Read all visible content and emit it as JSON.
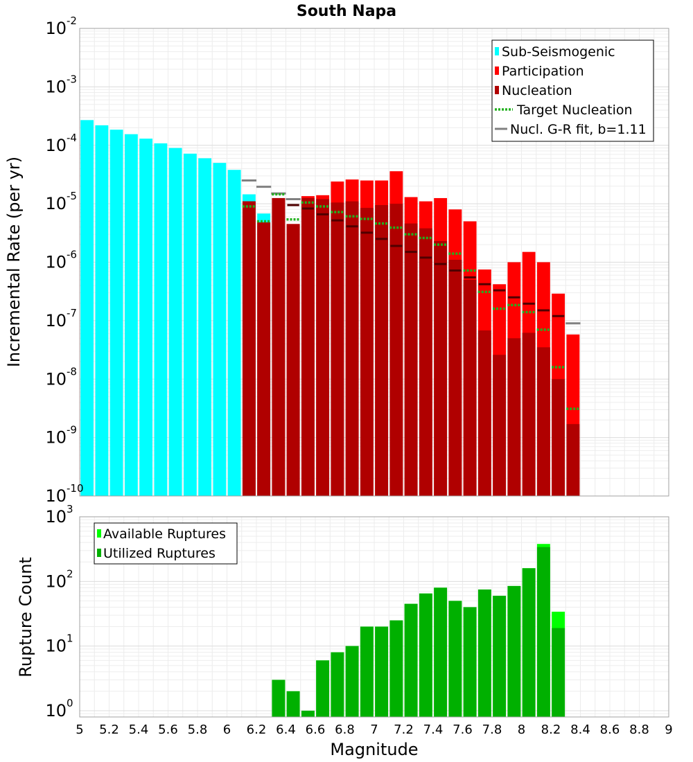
{
  "chart_data": [
    {
      "type": "bar",
      "title": "South Napa",
      "ylabel": "Incremental Rate (per yr)",
      "yscale": "log",
      "ylim": [
        1e-10,
        0.01
      ],
      "xlim": [
        5,
        9
      ],
      "grid": true,
      "legend_position": "top-right",
      "colors": {
        "sub_seismogenic": "#00ffff",
        "participation": "#ff0000",
        "nucleation": "#b00000",
        "target_nucleation": "#22b11f",
        "gr_fit": "#808080",
        "solution_nucleation_dash": "#500000"
      },
      "legend": [
        {
          "key": "sub_seismogenic",
          "label": "Sub-Seismogenic",
          "style": "box"
        },
        {
          "key": "participation",
          "label": "Participation",
          "style": "box"
        },
        {
          "key": "nucleation",
          "label": "Nucleation",
          "style": "box"
        },
        {
          "key": "target_nucleation",
          "label": "Target Nucleation",
          "style": "dotted"
        },
        {
          "key": "gr_fit",
          "label": "Nucl. G-R fit, b=1.11",
          "style": "line"
        }
      ],
      "sub_seismogenic": {
        "x": [
          5.05,
          5.15,
          5.25,
          5.35,
          5.45,
          5.55,
          5.65,
          5.75,
          5.85,
          5.95,
          6.05,
          6.15,
          6.25
        ],
        "values": [
          0.00027,
          0.00022,
          0.000185,
          0.000155,
          0.00013,
          0.000108,
          9e-05,
          7.2e-05,
          6e-05,
          5e-05,
          3.8e-05,
          1.45e-05,
          6.8e-06
        ]
      },
      "participation": {
        "x": [
          6.15,
          6.25,
          6.35,
          6.45,
          6.55,
          6.65,
          6.75,
          6.85,
          6.95,
          7.05,
          7.15,
          7.25,
          7.35,
          7.45,
          7.55,
          7.65,
          7.75,
          7.85,
          7.95,
          8.05,
          8.15,
          8.25,
          8.35
        ],
        "values": [
          1.1e-05,
          4.8e-06,
          1.25e-05,
          4.5e-06,
          1.35e-05,
          1.4e-05,
          2.4e-05,
          2.6e-05,
          2.5e-05,
          2.5e-05,
          3.6e-05,
          1.3e-05,
          1.1e-05,
          1.25e-05,
          8e-06,
          5e-06,
          7.5e-07,
          4.2e-07,
          1e-06,
          1.5e-06,
          1e-06,
          2.9e-07,
          5.8e-08
        ]
      },
      "nucleation": {
        "x": [
          6.15,
          6.25,
          6.35,
          6.45,
          6.55,
          6.65,
          6.75,
          6.85,
          6.95,
          7.05,
          7.15,
          7.25,
          7.35,
          7.45,
          7.55,
          7.65,
          7.75,
          7.85,
          7.95,
          8.05,
          8.15,
          8.25,
          8.35
        ],
        "values": [
          1.1e-05,
          4.8e-06,
          1.25e-05,
          4.5e-06,
          1.25e-05,
          1.2e-05,
          1.05e-05,
          1.1e-05,
          8.5e-06,
          9.5e-06,
          1e-05,
          4.6e-06,
          3.8e-06,
          2.3e-06,
          1.1e-06,
          5e-07,
          6.8e-08,
          2.6e-08,
          5e-08,
          6.2e-08,
          3.5e-08,
          1e-08,
          1.7e-09
        ]
      },
      "solution_nucleation_marks": {
        "x": [
          6.45,
          6.55,
          6.65,
          6.75,
          6.85,
          6.95,
          7.05,
          7.15,
          7.25,
          7.35,
          7.45,
          7.55,
          7.65,
          7.75,
          7.85,
          7.95,
          8.05,
          8.15,
          8.25
        ],
        "values": [
          9.5e-06,
          8.3e-06,
          6.6e-06,
          5.2e-06,
          4.1e-06,
          3.2e-06,
          2.5e-06,
          1.9e-06,
          1.5e-06,
          1.2e-06,
          9.3e-07,
          7.2e-07,
          5.5e-07,
          4.2e-07,
          3.3e-07,
          2.5e-07,
          1.95e-07,
          1.5e-07,
          1.2e-07
        ]
      },
      "target_nucleation": {
        "x": [
          6.15,
          6.25,
          6.35,
          6.45,
          6.55,
          6.65,
          6.75,
          6.85,
          6.95,
          7.05,
          7.15,
          7.25,
          7.35,
          7.45,
          7.55,
          7.65,
          7.75,
          7.85,
          7.95,
          8.05,
          8.15,
          8.25,
          8.35
        ],
        "values": [
          9e-06,
          5e-06,
          1.45e-05,
          5.4e-06,
          1.05e-05,
          9e-06,
          7.2e-06,
          6.1e-06,
          5.5e-06,
          4.6e-06,
          3.9e-06,
          3e-06,
          2.6e-06,
          2e-06,
          1.4e-06,
          7.2e-07,
          3.1e-07,
          1.6e-07,
          1.85e-07,
          1.4e-07,
          7e-08,
          1.6e-08,
          3.1e-09
        ]
      },
      "gr_fit": {
        "x": [
          6.15,
          6.25,
          6.35,
          6.45
        ],
        "values": [
          2.5e-05,
          1.95e-05,
          1.5e-05,
          1.2e-05
        ],
        "tail": {
          "x": 8.35,
          "value": 9e-08
        }
      }
    },
    {
      "type": "bar",
      "title": "",
      "xlabel": "Magnitude",
      "ylabel": "Rupture Count",
      "yscale": "log",
      "ylim": [
        0.8,
        1000
      ],
      "xlim": [
        5,
        9
      ],
      "grid": true,
      "legend_position": "top-left",
      "colors": {
        "available": "#00ff00",
        "utilized": "#00b000"
      },
      "legend": [
        {
          "key": "available",
          "label": "Available Ruptures"
        },
        {
          "key": "utilized",
          "label": "Utilized Ruptures"
        }
      ],
      "x_ticks": [
        "5",
        "5.2",
        "5.4",
        "5.6",
        "5.8",
        "6",
        "6.2",
        "6.4",
        "6.6",
        "6.8",
        "7",
        "7.2",
        "7.4",
        "7.6",
        "7.8",
        "8",
        "8.2",
        "8.4",
        "8.6",
        "8.8",
        "9"
      ],
      "y_ticks": [
        {
          "base": "10",
          "exp": "0",
          "value": 1
        },
        {
          "base": "10",
          "exp": "1",
          "value": 10
        },
        {
          "base": "10",
          "exp": "2",
          "value": 100
        },
        {
          "base": "10",
          "exp": "3",
          "value": 1000
        }
      ],
      "available": {
        "x": [
          6.35,
          6.45,
          6.55,
          6.65,
          6.75,
          6.85,
          6.95,
          7.05,
          7.15,
          7.25,
          7.35,
          7.45,
          7.55,
          7.65,
          7.75,
          7.85,
          7.95,
          8.05,
          8.15,
          8.25
        ],
        "values": [
          3,
          2,
          1,
          6,
          8,
          10,
          20,
          20,
          25,
          45,
          65,
          80,
          50,
          40,
          75,
          60,
          85,
          160,
          380,
          34
        ]
      },
      "utilized": {
        "x": [
          6.35,
          6.45,
          6.55,
          6.65,
          6.75,
          6.85,
          6.95,
          7.05,
          7.15,
          7.25,
          7.35,
          7.45,
          7.55,
          7.65,
          7.75,
          7.85,
          7.95,
          8.05,
          8.15,
          8.25
        ],
        "values": [
          3,
          2,
          1,
          6,
          8,
          10,
          20,
          20,
          25,
          45,
          65,
          80,
          50,
          40,
          75,
          60,
          85,
          160,
          340,
          19
        ]
      }
    }
  ],
  "top_y_ticks": [
    {
      "base": "10",
      "exp": "-10",
      "value": 1e-10
    },
    {
      "base": "10",
      "exp": "-9",
      "value": 1e-09
    },
    {
      "base": "10",
      "exp": "-8",
      "value": 1e-08
    },
    {
      "base": "10",
      "exp": "-7",
      "value": 1e-07
    },
    {
      "base": "10",
      "exp": "-6",
      "value": 1e-06
    },
    {
      "base": "10",
      "exp": "-5",
      "value": 1e-05
    },
    {
      "base": "10",
      "exp": "-4",
      "value": 0.0001
    },
    {
      "base": "10",
      "exp": "-3",
      "value": 0.001
    },
    {
      "base": "10",
      "exp": "-2",
      "value": 0.01
    }
  ]
}
